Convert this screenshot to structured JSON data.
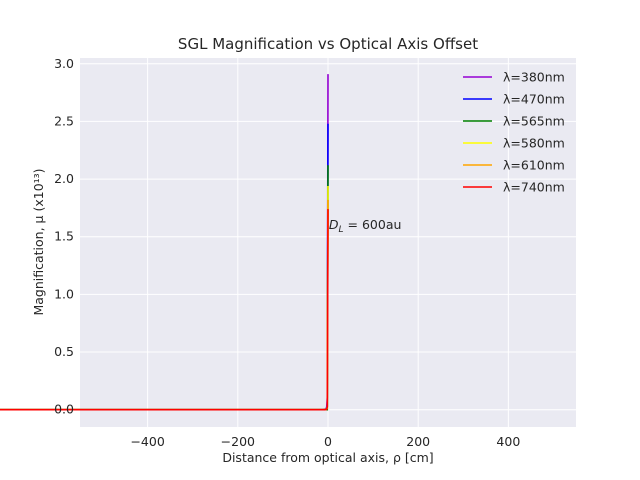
{
  "chart_data": {
    "type": "line",
    "title": "SGL Magnification vs Optical Axis Offset",
    "xlabel": "Distance from optical axis, ρ [cm]",
    "ylabel": "Magnification, μ (x10¹³)",
    "xlim": [
      -550,
      550
    ],
    "ylim": [
      -0.15,
      3.05
    ],
    "xticks": [
      -400,
      -200,
      0,
      200,
      400
    ],
    "xtick_labels": [
      "−400",
      "−200",
      "0",
      "200",
      "400"
    ],
    "yticks": [
      0.0,
      0.5,
      1.0,
      1.5,
      2.0,
      2.5,
      3.0
    ],
    "ytick_labels": [
      "0.0",
      "0.5",
      "1.0",
      "1.5",
      "2.0",
      "2.5",
      "3.0"
    ],
    "grid": true,
    "legend_position": "top-right",
    "x_range": [
      -500,
      500
    ],
    "series": [
      {
        "name": "λ=380nm",
        "color": "#9400d3",
        "peak": 2.91
      },
      {
        "name": "λ=470nm",
        "color": "#0000ff",
        "peak": 2.48
      },
      {
        "name": "λ=565nm",
        "color": "#008000",
        "peak": 2.12
      },
      {
        "name": "λ=580nm",
        "color": "#ffff00",
        "peak": 1.94
      },
      {
        "name": "λ=610nm",
        "color": "#ffa500",
        "peak": 1.82
      },
      {
        "name": "λ=740nm",
        "color": "#ff0000",
        "peak": 1.74
      }
    ],
    "annotation": {
      "text_main": "D",
      "text_sub": "L",
      "text_rest": " = 600au",
      "x": 2,
      "y": 1.6
    }
  }
}
